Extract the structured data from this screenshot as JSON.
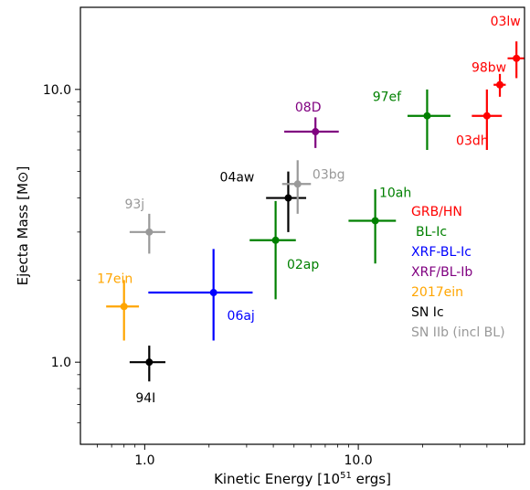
{
  "chart_data": {
    "type": "scatter",
    "title": "",
    "xlabel": "Kinetic Energy [10",
    "xlabel_sup": "51",
    "xlabel_suffix": " ergs]",
    "ylabel": "Ejecta Mass [M⊙]",
    "xscale": "log",
    "yscale": "log",
    "xlim": [
      0.5,
      60
    ],
    "ylim": [
      0.5,
      20
    ],
    "xticks": [
      {
        "value": 1,
        "label": "1.0"
      },
      {
        "value": 10,
        "label": "10.0"
      }
    ],
    "yticks": [
      {
        "value": 1,
        "label": "1.0"
      },
      {
        "value": 10,
        "label": "10.0"
      }
    ],
    "grid": false,
    "legend_placement": "right",
    "series": [
      {
        "name": "GRB/HN",
        "color": "#ff0000",
        "points": [
          {
            "label": "03lw",
            "x": 55,
            "y": 13.0,
            "xerr": [
              5,
              5
            ],
            "yerr": [
              2,
              2
            ]
          },
          {
            "label": "98bw",
            "x": 46,
            "y": 10.4,
            "xerr": [
              3,
              3
            ],
            "yerr": [
              1,
              1
            ]
          },
          {
            "label": "03dh",
            "x": 40,
            "y": 8.0,
            "xerr": [
              6,
              7
            ],
            "yerr": [
              2,
              2
            ]
          }
        ]
      },
      {
        "name": "BL-Ic",
        "color": "#008000",
        "points": [
          {
            "label": "97ef",
            "x": 21,
            "y": 8.0,
            "xerr": [
              4,
              6
            ],
            "yerr": [
              2,
              2
            ]
          },
          {
            "label": "10ah",
            "x": 12,
            "y": 3.3,
            "xerr": [
              3,
              3
            ],
            "yerr": [
              1,
              1
            ]
          },
          {
            "label": "02ap",
            "x": 4.1,
            "y": 2.8,
            "xerr": [
              1,
              1
            ],
            "yerr": [
              1.1,
              1.1
            ]
          }
        ]
      },
      {
        "name": "XRF-BL-Ic",
        "color": "#0000ff",
        "points": [
          {
            "label": "06aj",
            "x": 2.1,
            "y": 1.8,
            "xerr": [
              1.06,
              1.1
            ],
            "yerr": [
              0.6,
              0.8
            ]
          }
        ]
      },
      {
        "name": "XRF/BL-Ib",
        "color": "#800080",
        "points": [
          {
            "label": "08D",
            "x": 6.3,
            "y": 7.0,
            "xerr": [
              1.8,
              1.8
            ],
            "yerr": [
              0.9,
              0.9
            ]
          }
        ]
      },
      {
        "name": "2017ein",
        "color": "#ffa500",
        "points": [
          {
            "label": "17ein",
            "x": 0.8,
            "y": 1.6,
            "xerr": [
              0.14,
              0.14
            ],
            "yerr": [
              0.4,
              0.4
            ]
          }
        ]
      },
      {
        "name": "SN Ic",
        "color": "#000000",
        "points": [
          {
            "label": "94I",
            "x": 1.05,
            "y": 1.0,
            "xerr": [
              0.2,
              0.2
            ],
            "yerr": [
              0.15,
              0.15
            ]
          },
          {
            "label": "04aw",
            "x": 4.7,
            "y": 4.0,
            "xerr": [
              1,
              1
            ],
            "yerr": [
              1,
              1
            ]
          }
        ]
      },
      {
        "name": "SN IIb (incl BL)",
        "color": "#999999",
        "points": [
          {
            "label": "93j",
            "x": 1.05,
            "y": 3.0,
            "xerr": [
              0.2,
              0.2
            ],
            "yerr": [
              0.5,
              0.5
            ]
          },
          {
            "label": "03bg",
            "x": 5.2,
            "y": 4.5,
            "xerr": [
              0.8,
              0.8
            ],
            "yerr": [
              1,
              1
            ]
          }
        ]
      }
    ]
  }
}
